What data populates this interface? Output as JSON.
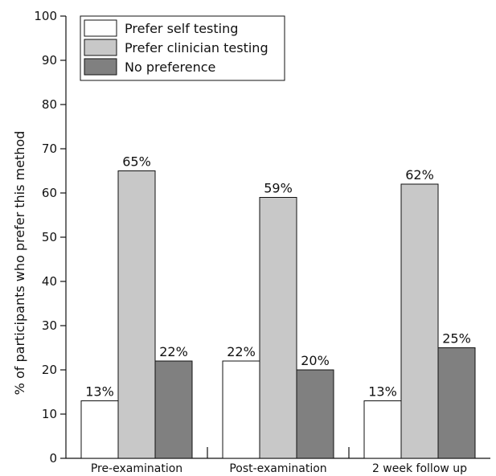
{
  "chart_data": {
    "type": "bar",
    "categories": [
      "Pre-examination",
      "Post-examination",
      "2 week follow up"
    ],
    "series": [
      {
        "name": "Prefer self testing",
        "values": [
          13,
          22,
          13
        ],
        "labels": [
          "13%",
          "22%",
          "13%"
        ],
        "color": "#ffffff"
      },
      {
        "name": "Prefer clinician testing",
        "values": [
          65,
          59,
          62
        ],
        "labels": [
          "65%",
          "59%",
          "62%"
        ],
        "color": "#c8c8c8"
      },
      {
        "name": "No preference",
        "values": [
          22,
          20,
          25
        ],
        "labels": [
          "22%",
          "20%",
          "25%"
        ],
        "color": "#808080"
      }
    ],
    "ylabel": "% of participants who prefer this method",
    "xlabel": "",
    "ylim": [
      0,
      100
    ],
    "yticks": [
      0,
      10,
      20,
      30,
      40,
      50,
      60,
      70,
      80,
      90,
      100
    ],
    "grid": false,
    "legend_position": "top-left"
  }
}
